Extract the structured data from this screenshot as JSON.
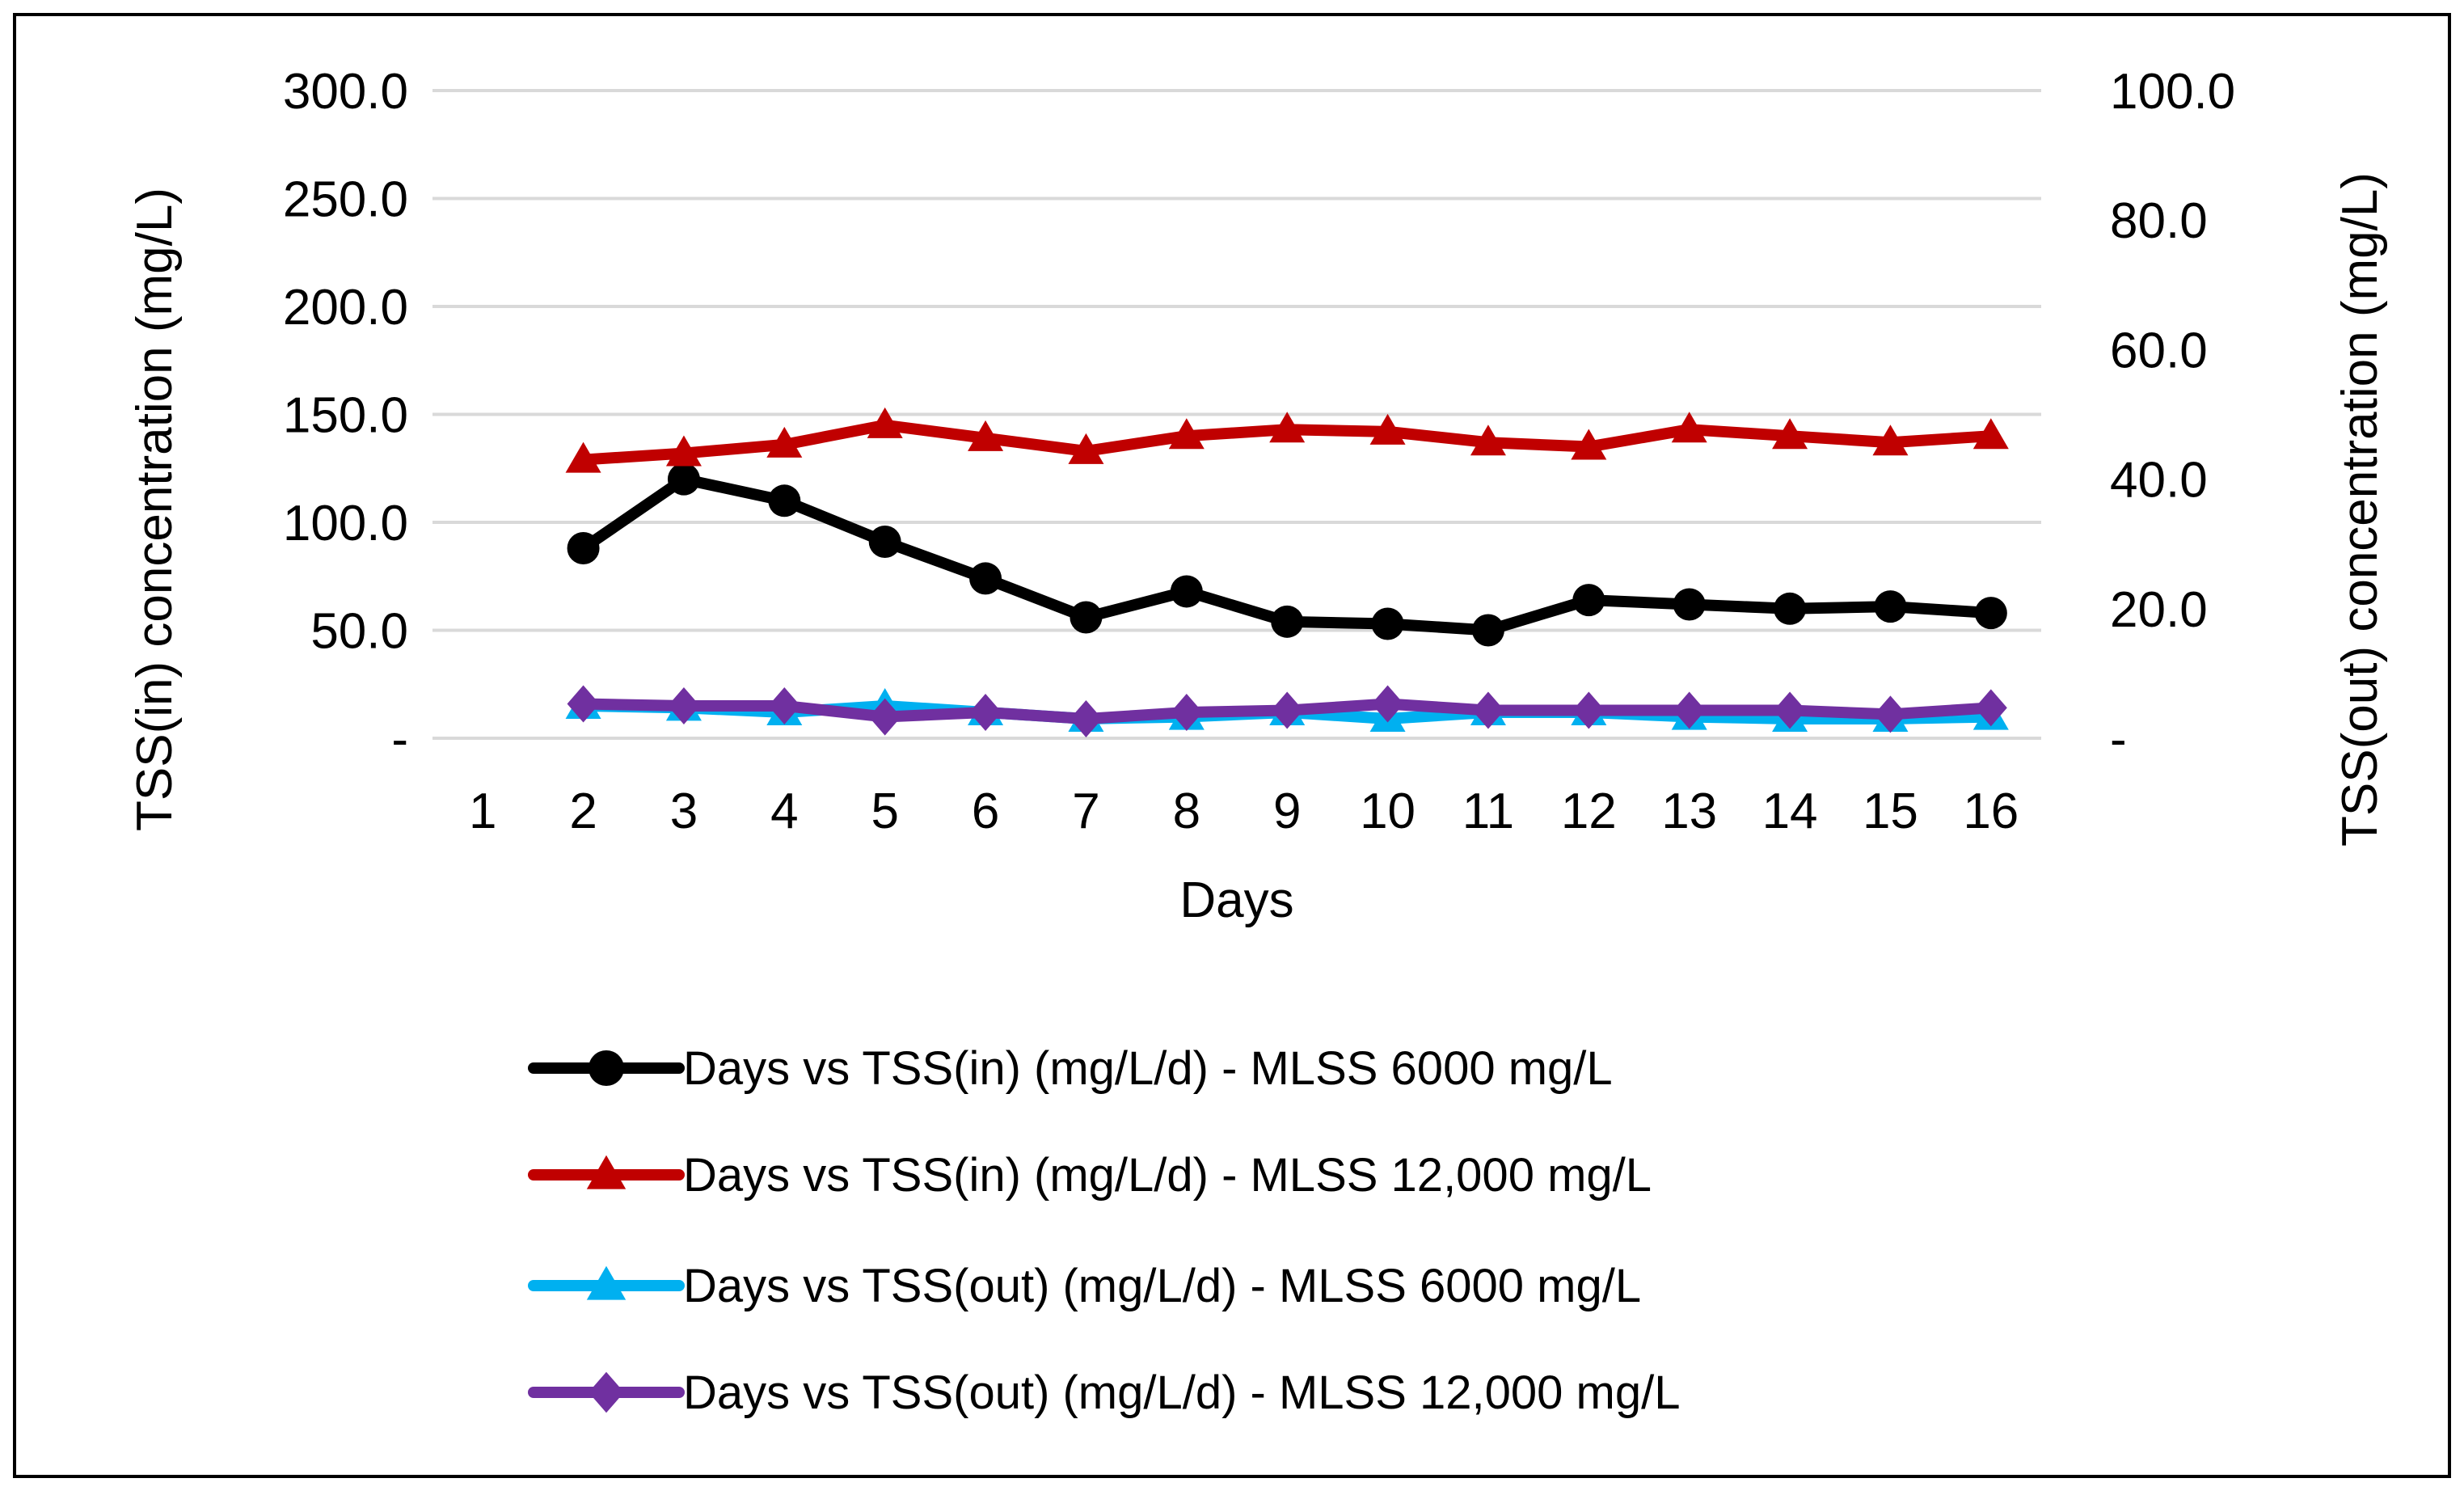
{
  "chart_data": {
    "type": "line",
    "xlabel": "Days",
    "ylabel_left": "TSS(in) concentration (mg/L)",
    "ylabel_right": "TSS(out) concentration (mg/L)",
    "categories": [
      "1",
      "2",
      "3",
      "4",
      "5",
      "6",
      "7",
      "8",
      "9",
      "10",
      "11",
      "12",
      "13",
      "14",
      "15",
      "16"
    ],
    "y_left": {
      "min": 0,
      "max": 300,
      "ticks": [
        "-",
        "50.0",
        "100.0",
        "150.0",
        "200.0",
        "250.0",
        "300.0"
      ]
    },
    "y_right": {
      "min": 0,
      "max": 100,
      "ticks": [
        "-",
        "20.0",
        "40.0",
        "60.0",
        "80.0",
        "100.0"
      ]
    },
    "grid": true,
    "legend_position": "bottom",
    "series": [
      {
        "name": "Days vs TSS(in) (mg/L/d) - MLSS 6000 mg/L",
        "axis": "left",
        "color": "#000000",
        "marker": "circle",
        "values": [
          null,
          88,
          120,
          110,
          91,
          74,
          56,
          68,
          54,
          53,
          50,
          64,
          62,
          60,
          61,
          58
        ]
      },
      {
        "name": "Days vs TSS(in) (mg/L/d) - MLSS 12,000 mg/L",
        "axis": "left",
        "color": "#C00000",
        "marker": "triangle",
        "values": [
          null,
          129,
          132,
          136,
          145,
          139,
          133,
          140,
          143,
          142,
          137,
          135,
          143,
          140,
          137,
          140
        ]
      },
      {
        "name": "Days vs TSS(out) (mg/L/d) - MLSS 6000 mg/L",
        "axis": "right",
        "color": "#00B0F0",
        "marker": "triangle",
        "values": [
          null,
          5.0,
          4.7,
          4.0,
          5.0,
          4.0,
          3.0,
          3.3,
          4.0,
          3.0,
          4.0,
          4.0,
          3.3,
          3.0,
          3.0,
          3.3
        ]
      },
      {
        "name": "Days vs TSS(out) (mg/L/d) - MLSS 12,000 mg/L",
        "axis": "right",
        "color": "#7030A0",
        "marker": "diamond",
        "values": [
          null,
          5.3,
          5.0,
          5.0,
          3.3,
          4.0,
          3.0,
          4.0,
          4.3,
          5.3,
          4.3,
          4.3,
          4.3,
          4.3,
          3.7,
          4.7
        ]
      }
    ]
  }
}
